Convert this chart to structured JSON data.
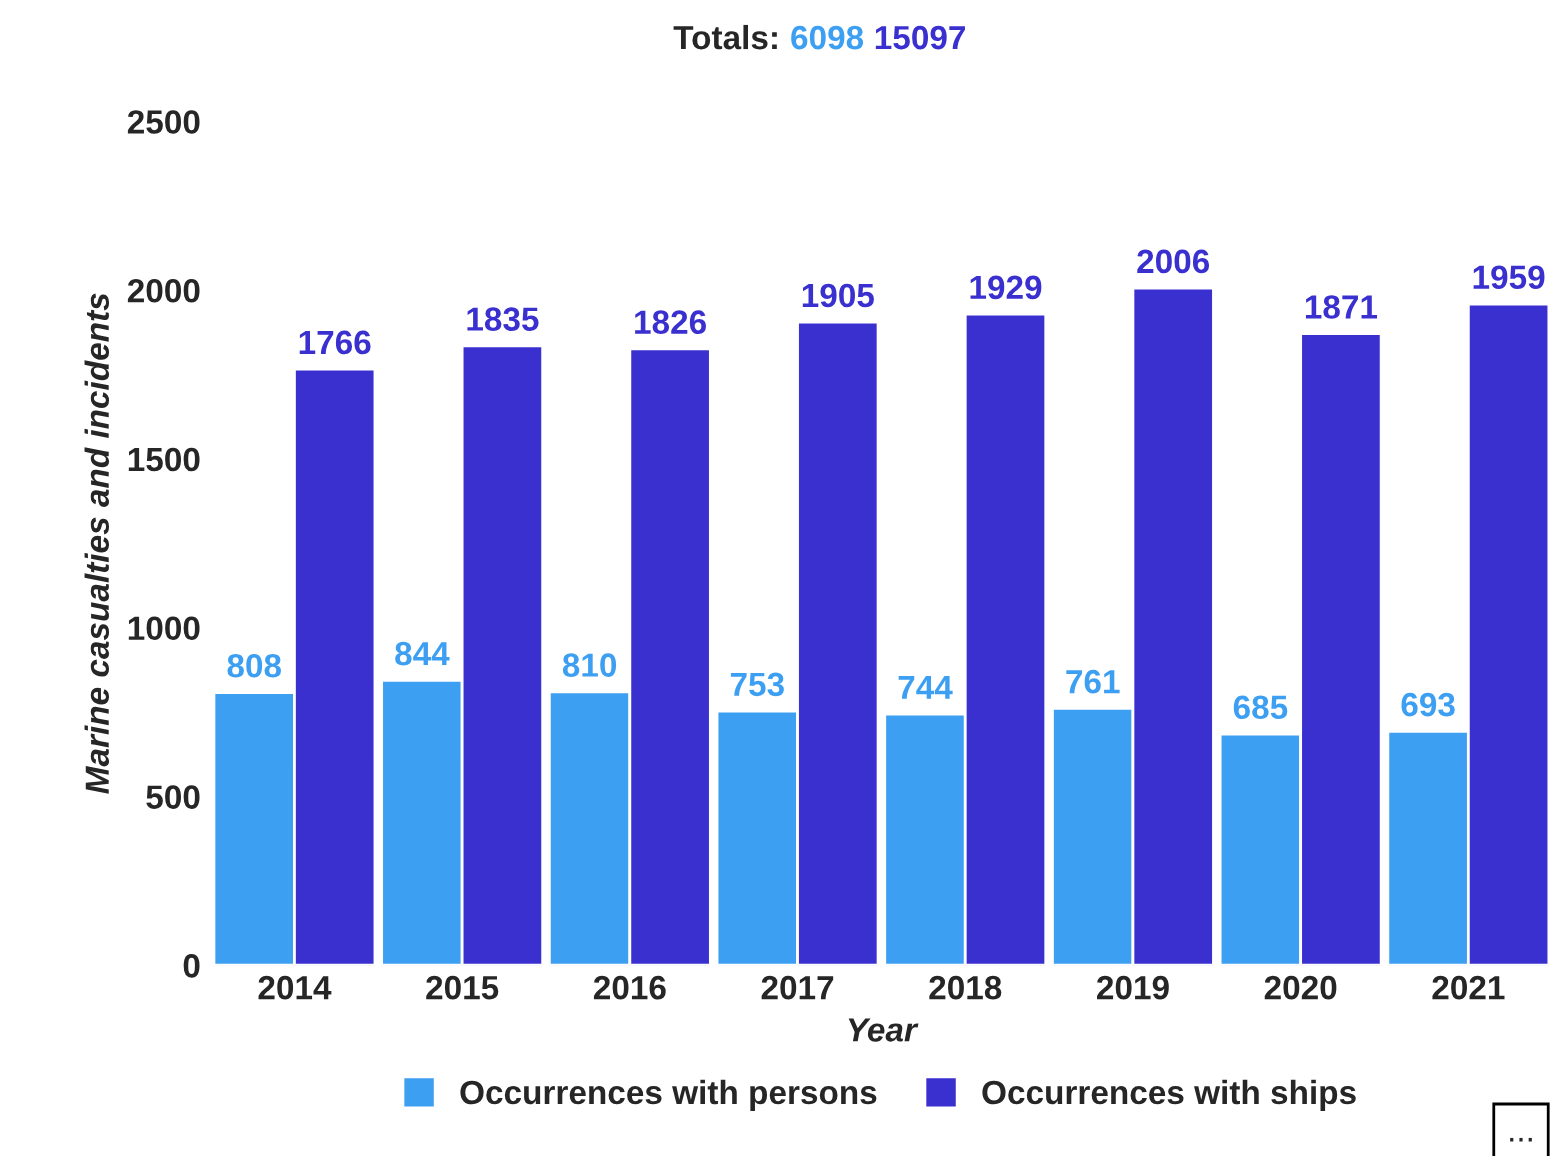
{
  "chart_data": {
    "type": "bar",
    "title": "Totals:",
    "categories": [
      "2014",
      "2015",
      "2016",
      "2017",
      "2018",
      "2019",
      "2020",
      "2021"
    ],
    "series": [
      {
        "name": "Occurrences with persons",
        "color": "#3d9ff2",
        "values": [
          808,
          844,
          810,
          753,
          744,
          761,
          685,
          693
        ]
      },
      {
        "name": "Occurrences with ships",
        "color": "#3a30cf",
        "values": [
          1766,
          1835,
          1826,
          1905,
          1929,
          2006,
          1871,
          1959
        ]
      }
    ],
    "annotations": [
      "6098",
      "15097",
      "..."
    ],
    "xlabel": "Year",
    "ylabel": "Marine casualties and incidents",
    "ylim": [
      0,
      2500
    ],
    "yticks": [
      0,
      500,
      1000,
      1500,
      2000,
      2500
    ],
    "data_labels": true,
    "grid": false,
    "legend": "bottom"
  }
}
